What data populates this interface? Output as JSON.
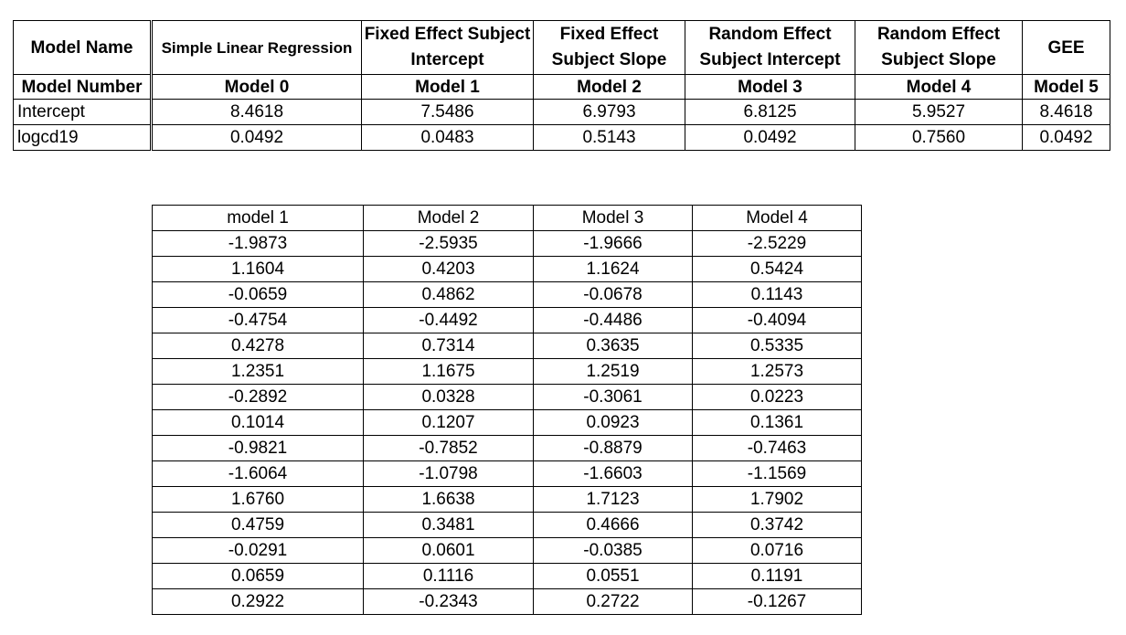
{
  "summary_table": {
    "header_row_1": {
      "label": "Model Name",
      "cells": [
        "Simple Linear Regression",
        "Fixed Effect Subject Intercept",
        "Fixed Effect Subject Slope",
        "Random Effect Subject Intercept",
        "Random Effect Subject Slope",
        "GEE"
      ]
    },
    "header_row_2": {
      "label": "Model Number",
      "cells": [
        "Model 0",
        "Model 1",
        "Model 2",
        "Model 3",
        "Model 4",
        "Model 5"
      ]
    },
    "rows": [
      {
        "label": "Intercept",
        "values": [
          "8.4618",
          "7.5486",
          "6.9793",
          "6.8125",
          "5.9527",
          "8.4618"
        ]
      },
      {
        "label": "logcd19",
        "values": [
          "0.0492",
          "0.0483",
          "0.5143",
          "0.0492",
          "0.7560",
          "0.0492"
        ]
      }
    ]
  },
  "residual_table": {
    "headers": [
      "model 1",
      "Model 2",
      "Model 3",
      "Model 4"
    ],
    "rows": [
      [
        "-1.9873",
        "-2.5935",
        "-1.9666",
        "-2.5229"
      ],
      [
        "1.1604",
        "0.4203",
        "1.1624",
        "0.5424"
      ],
      [
        "-0.0659",
        "0.4862",
        "-0.0678",
        "0.1143"
      ],
      [
        "-0.4754",
        "-0.4492",
        "-0.4486",
        "-0.4094"
      ],
      [
        "0.4278",
        "0.7314",
        "0.3635",
        "0.5335"
      ],
      [
        "1.2351",
        "1.1675",
        "1.2519",
        "1.2573"
      ],
      [
        "-0.2892",
        "0.0328",
        "-0.3061",
        "0.0223"
      ],
      [
        "0.1014",
        "0.1207",
        "0.0923",
        "0.1361"
      ],
      [
        "-0.9821",
        "-0.7852",
        "-0.8879",
        "-0.7463"
      ],
      [
        "-1.6064",
        "-1.0798",
        "-1.6603",
        "-1.1569"
      ],
      [
        "1.6760",
        "1.6638",
        "1.7123",
        "1.7902"
      ],
      [
        "0.4759",
        "0.3481",
        "0.4666",
        "0.3742"
      ],
      [
        "-0.0291",
        "0.0601",
        "-0.0385",
        "0.0716"
      ],
      [
        "0.0659",
        "0.1116",
        "0.0551",
        "0.1191"
      ],
      [
        "0.2922",
        "-0.2343",
        "0.2722",
        "-0.1267"
      ]
    ]
  }
}
